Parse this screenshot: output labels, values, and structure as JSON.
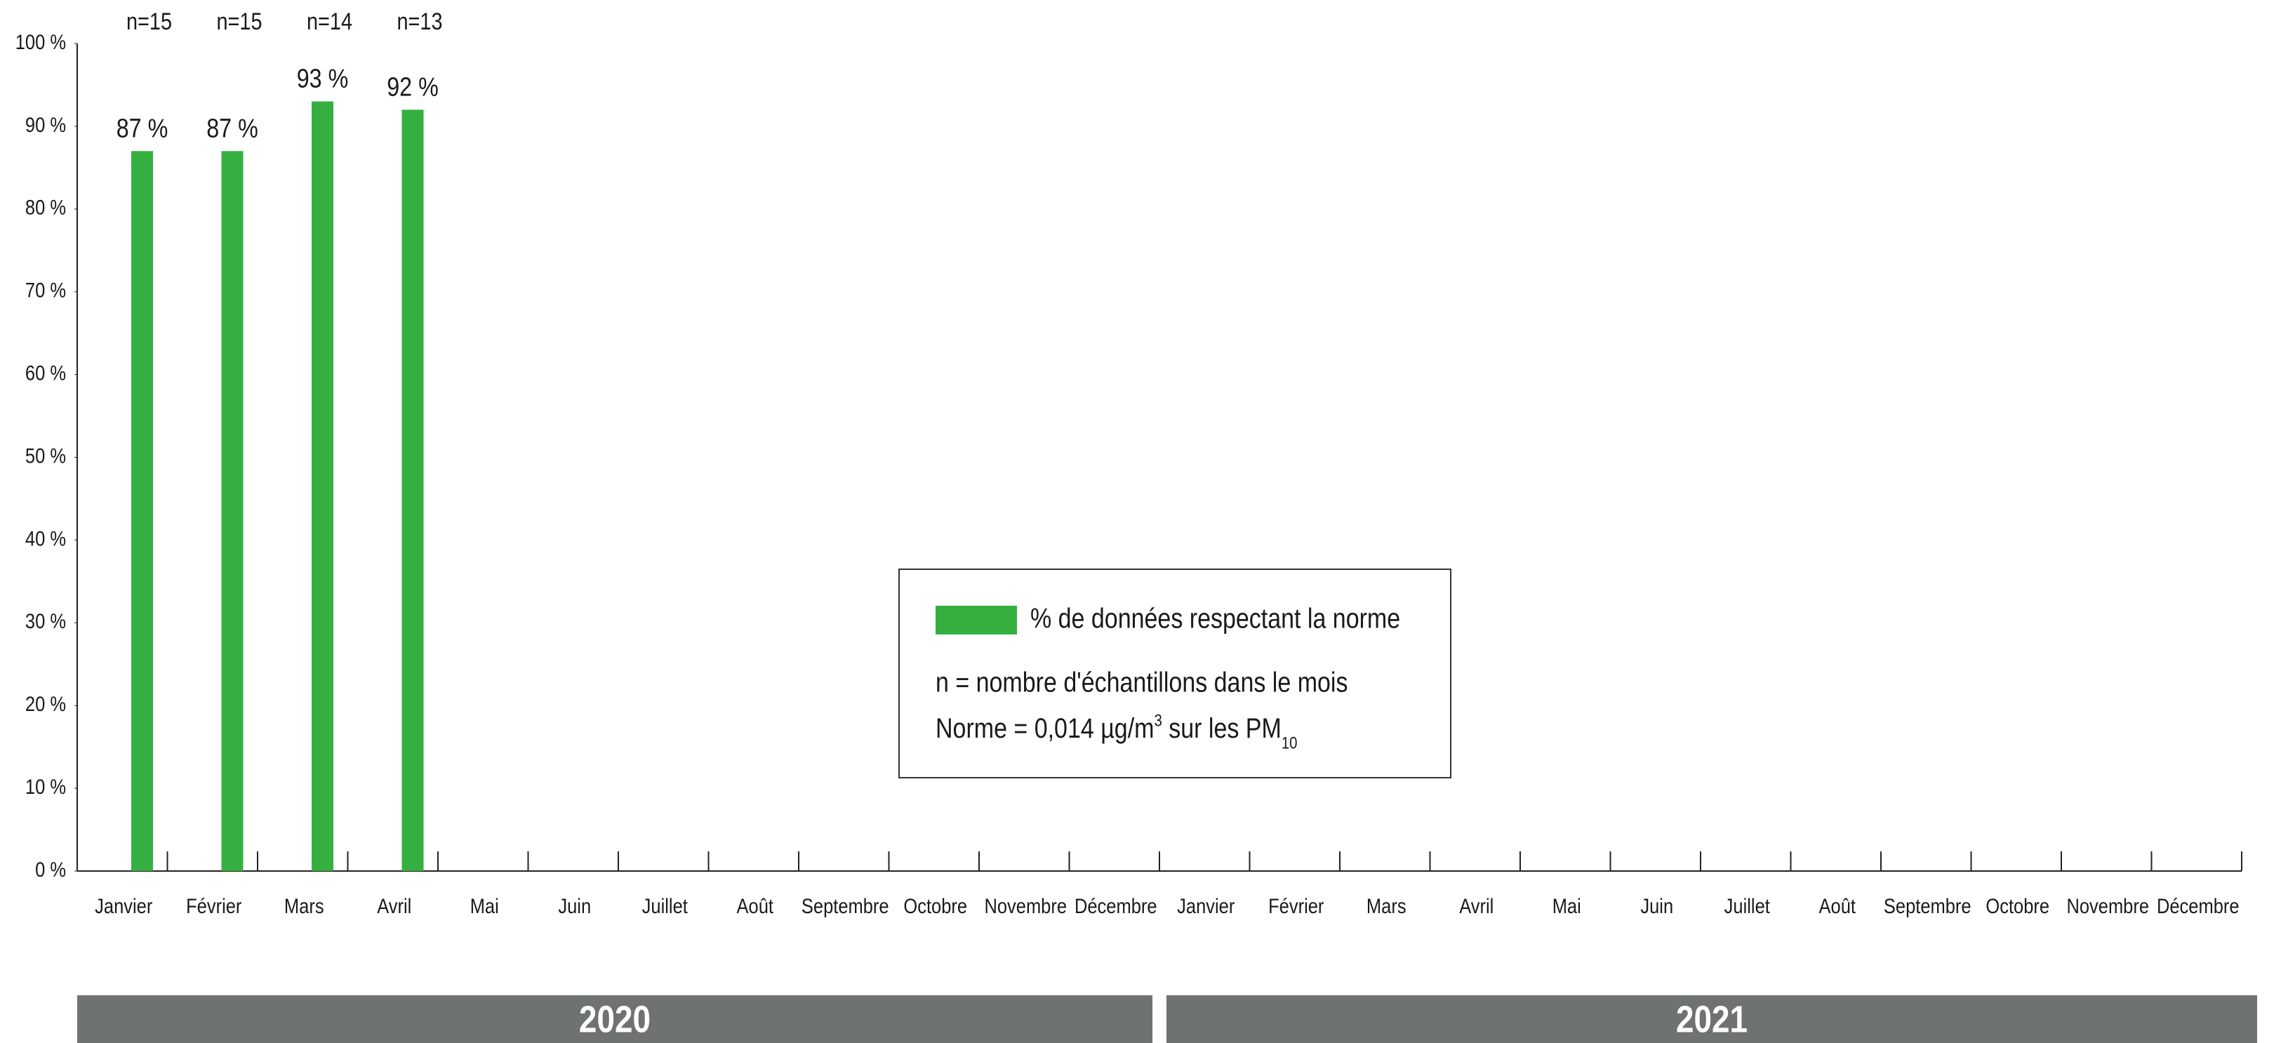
{
  "chart_data": {
    "type": "bar",
    "categories": [
      "Janvier",
      "Février",
      "Mars",
      "Avril",
      "Mai",
      "Juin",
      "Juillet",
      "Août",
      "Septembre",
      "Octobre",
      "Novembre",
      "Décembre",
      "Janvier",
      "Février",
      "Mars",
      "Avril",
      "Mai",
      "Juin",
      "Juillet",
      "Août",
      "Septembre",
      "Octobre",
      "Novembre",
      "Décembre"
    ],
    "series": [
      {
        "name": "% de données respectant la norme",
        "color": "#35b040",
        "values": [
          87,
          87,
          93,
          92,
          null,
          null,
          null,
          null,
          null,
          null,
          null,
          null,
          null,
          null,
          null,
          null,
          null,
          null,
          null,
          null,
          null,
          null,
          null,
          null
        ],
        "value_labels": [
          "87 %",
          "87 %",
          "93 %",
          "92 %",
          null,
          null,
          null,
          null,
          null,
          null,
          null,
          null,
          null,
          null,
          null,
          null,
          null,
          null,
          null,
          null,
          null,
          null,
          null,
          null
        ],
        "n_labels": [
          "n=15",
          "n=15",
          "n=14",
          "n=13",
          null,
          null,
          null,
          null,
          null,
          null,
          null,
          null,
          null,
          null,
          null,
          null,
          null,
          null,
          null,
          null,
          null,
          null,
          null,
          null
        ]
      }
    ],
    "ylim": [
      0,
      100
    ],
    "yticks": [
      {
        "value": 0,
        "label": "0 %"
      },
      {
        "value": 10,
        "label": "10 %"
      },
      {
        "value": 20,
        "label": "20 %"
      },
      {
        "value": 30,
        "label": "30 %"
      },
      {
        "value": 40,
        "label": "40 %"
      },
      {
        "value": 50,
        "label": "50 %"
      },
      {
        "value": 60,
        "label": "60 %"
      },
      {
        "value": 70,
        "label": "70 %"
      },
      {
        "value": 80,
        "label": "80 %"
      },
      {
        "value": 90,
        "label": "90 %"
      },
      {
        "value": 100,
        "label": "100 %"
      }
    ],
    "year_groups": [
      "2020",
      "2021"
    ],
    "notes": [
      "n = nombre d'échantillons dans le mois",
      [
        "Norme = 0,014 µg/m",
        "3",
        " sur les PM",
        "10"
      ]
    ]
  }
}
